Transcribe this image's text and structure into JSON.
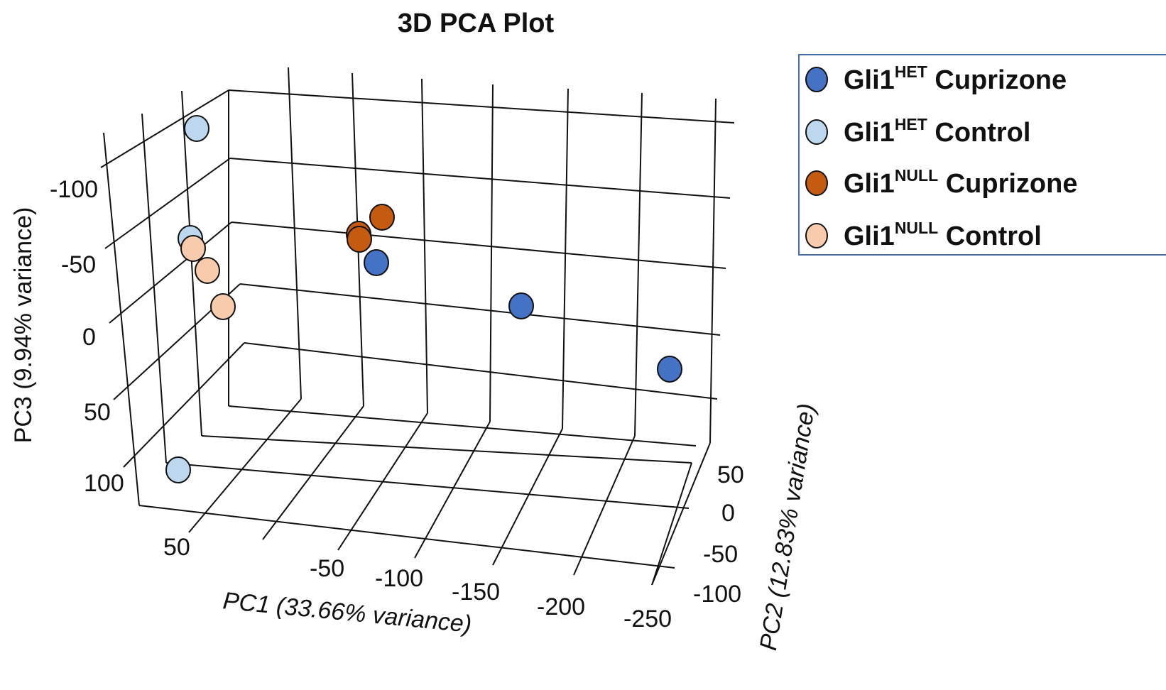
{
  "chart_data": {
    "type": "scatter",
    "title": "3D PCA Plot",
    "axes": {
      "pc1": {
        "label": "PC1 (33.66% variance)",
        "ticks": [
          "50",
          "-50",
          "-100",
          "-150",
          "-200",
          "-250"
        ]
      },
      "pc2": {
        "label": "PC2 (12.83% variance)",
        "ticks": [
          "50",
          "0",
          "-50",
          "-100"
        ]
      },
      "pc3": {
        "label": "PC3 (9.94% variance)",
        "ticks": [
          "-100",
          "-50",
          "0",
          "50",
          "100"
        ]
      }
    },
    "legend_position": "top-right",
    "series": [
      {
        "name": "HET Cuprizone",
        "label_parts": [
          "Gli1",
          "HET",
          "Cuprizone"
        ],
        "color": "#4472c4",
        "points": [
          {
            "pc1": -120,
            "pc2": 20,
            "pc3": -50
          },
          {
            "pc1": -190,
            "pc2": 0,
            "pc3": -30
          },
          {
            "pc1": -250,
            "pc2": -20,
            "pc3": -25
          }
        ]
      },
      {
        "name": "HET Control",
        "label_parts": [
          "Gli1",
          "HET",
          "Control"
        ],
        "color": "#bdd7ee",
        "points": [
          {
            "pc1": 50,
            "pc2": 60,
            "pc3": -130
          },
          {
            "pc1": 50,
            "pc2": 30,
            "pc3": -60
          },
          {
            "pc1": 50,
            "pc2": -20,
            "pc3": 100
          }
        ]
      },
      {
        "name": "NULL Cuprizone",
        "label_parts": [
          "Gli1",
          "NULL",
          "Cuprizone"
        ],
        "color": "#c55a11",
        "points": [
          {
            "pc1": -100,
            "pc2": 30,
            "pc3": -80
          },
          {
            "pc1": -100,
            "pc2": 30,
            "pc3": -65
          },
          {
            "pc1": -110,
            "pc2": 40,
            "pc3": -80
          }
        ]
      },
      {
        "name": "NULL Control",
        "label_parts": [
          "Gli1",
          "NULL",
          "Control"
        ],
        "color": "#f8cbad",
        "points": [
          {
            "pc1": 50,
            "pc2": 20,
            "pc3": -55
          },
          {
            "pc1": 50,
            "pc2": 20,
            "pc3": -45
          },
          {
            "pc1": 50,
            "pc2": 10,
            "pc3": -30
          }
        ]
      }
    ]
  }
}
